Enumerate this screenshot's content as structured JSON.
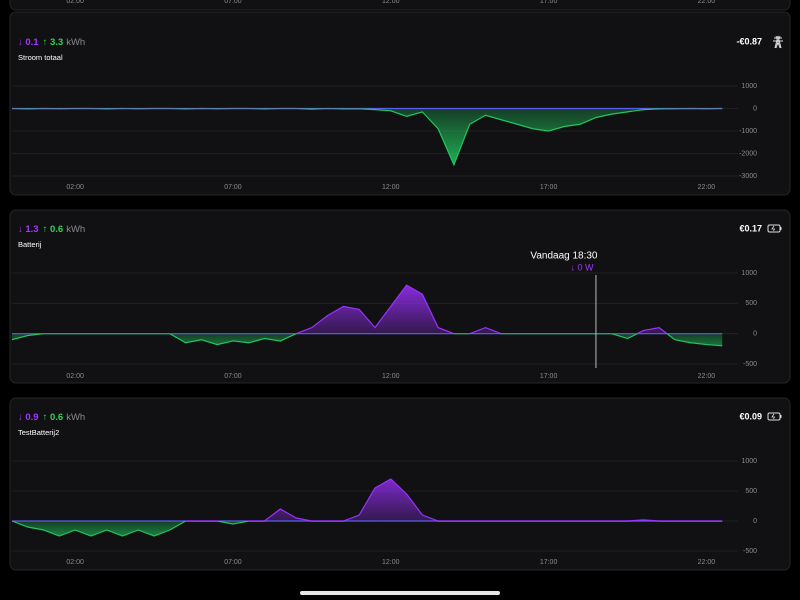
{
  "top_card": {
    "xticks": [
      {
        "value": 2,
        "label": "02:00"
      },
      {
        "value": 7,
        "label": "07:00"
      },
      {
        "value": 12,
        "label": "12:00"
      },
      {
        "value": 17,
        "label": "17:00"
      },
      {
        "value": 22,
        "label": "22:00"
      }
    ]
  },
  "cards": [
    {
      "down": "↓ 0.1",
      "up": "↑ 3.3",
      "unit": "kWh",
      "name": "Stroom totaal",
      "cost": "-€0.87",
      "chart_data": {
        "type": "area",
        "xlim": [
          0,
          23
        ],
        "ylim": [
          -3000,
          1000
        ],
        "yticks": [
          1000,
          0,
          -1000,
          -2000,
          -3000
        ],
        "xticks": [
          {
            "value": 2,
            "label": "02:00"
          },
          {
            "value": 7,
            "label": "07:00"
          },
          {
            "value": 12,
            "label": "12:00"
          },
          {
            "value": 17,
            "label": "17:00"
          },
          {
            "value": 22,
            "label": "22:00"
          }
        ],
        "positive_color": "#9b30ff",
        "negative_color": "#22c55e",
        "x": [
          0,
          0.5,
          1,
          1.5,
          2,
          2.5,
          3,
          3.5,
          4,
          4.5,
          5,
          5.5,
          6,
          6.5,
          7,
          7.5,
          8,
          8.5,
          9,
          9.5,
          10,
          10.5,
          11,
          11.5,
          12,
          12.5,
          13,
          13.5,
          14,
          14.5,
          15,
          15.5,
          16,
          16.5,
          17,
          17.5,
          18,
          18.5,
          19,
          19.5,
          20,
          20.5,
          21,
          21.5,
          22,
          22.5
        ],
        "values": [
          0,
          -20,
          0,
          -10,
          0,
          0,
          -20,
          0,
          -10,
          0,
          0,
          -20,
          0,
          -10,
          0,
          0,
          -20,
          0,
          0,
          -30,
          0,
          -20,
          -10,
          -50,
          -100,
          -350,
          -150,
          -900,
          -2500,
          -700,
          -300,
          -500,
          -700,
          -900,
          -1000,
          -800,
          -700,
          -400,
          -250,
          -150,
          -50,
          -20,
          -10,
          0,
          -10,
          0
        ]
      }
    },
    {
      "down": "↓ 1.3",
      "up": "↑ 0.6",
      "unit": "kWh",
      "name": "Batterij",
      "cost": "€0.17",
      "tooltip": {
        "x": 18.5,
        "title": "Vandaag 18:30",
        "value": "↓ 0 W"
      },
      "chart_data": {
        "type": "area",
        "xlim": [
          0,
          23
        ],
        "ylim": [
          -500,
          1000
        ],
        "yticks": [
          1000,
          500,
          0,
          -500
        ],
        "xticks": [
          {
            "value": 2,
            "label": "02:00"
          },
          {
            "value": 7,
            "label": "07:00"
          },
          {
            "value": 12,
            "label": "12:00"
          },
          {
            "value": 17,
            "label": "17:00"
          },
          {
            "value": 22,
            "label": "22:00"
          }
        ],
        "positive_color": "#9b30ff",
        "negative_color": "#22c55e",
        "x": [
          0,
          0.5,
          1,
          1.5,
          2,
          2.5,
          3,
          3.5,
          4,
          4.5,
          5,
          5.5,
          6,
          6.5,
          7,
          7.5,
          8,
          8.5,
          9,
          9.5,
          10,
          10.5,
          11,
          11.5,
          12,
          12.5,
          13,
          13.5,
          14,
          14.5,
          15,
          15.5,
          16,
          16.5,
          17,
          17.5,
          18,
          18.5,
          19,
          19.5,
          20,
          20.5,
          21,
          21.5,
          22,
          22.5
        ],
        "values": [
          -100,
          -30,
          0,
          0,
          0,
          0,
          0,
          0,
          0,
          0,
          0,
          -150,
          -100,
          -180,
          -120,
          -150,
          -80,
          -120,
          0,
          100,
          300,
          450,
          400,
          100,
          450,
          800,
          650,
          100,
          0,
          0,
          100,
          0,
          0,
          0,
          0,
          0,
          0,
          0,
          0,
          -80,
          50,
          100,
          -100,
          -150,
          -180,
          -200
        ]
      }
    },
    {
      "down": "↓ 0.9",
      "up": "↑ 0.6",
      "unit": "kWh",
      "name": "TestBatterij2",
      "cost": "€0.09",
      "chart_data": {
        "type": "area",
        "xlim": [
          0,
          23
        ],
        "ylim": [
          -500,
          1000
        ],
        "yticks": [
          1000,
          500,
          0,
          -500
        ],
        "xticks": [
          {
            "value": 2,
            "label": "02:00"
          },
          {
            "value": 7,
            "label": "07:00"
          },
          {
            "value": 12,
            "label": "12:00"
          },
          {
            "value": 17,
            "label": "17:00"
          },
          {
            "value": 22,
            "label": "22:00"
          }
        ],
        "positive_color": "#9b30ff",
        "negative_color": "#22c55e",
        "x": [
          0,
          0.5,
          1,
          1.5,
          2,
          2.5,
          3,
          3.5,
          4,
          4.5,
          5,
          5.5,
          6,
          6.5,
          7,
          7.5,
          8,
          8.5,
          9,
          9.5,
          10,
          10.5,
          11,
          11.5,
          12,
          12.5,
          13,
          13.5,
          14,
          14.5,
          15,
          15.5,
          16,
          16.5,
          17,
          17.5,
          18,
          18.5,
          19,
          19.5,
          20,
          20.5,
          21,
          21.5,
          22,
          22.5
        ],
        "values": [
          0,
          -100,
          -150,
          -250,
          -150,
          -250,
          -150,
          -250,
          -150,
          -250,
          -150,
          0,
          0,
          0,
          -50,
          0,
          0,
          200,
          50,
          0,
          0,
          0,
          100,
          550,
          700,
          450,
          100,
          0,
          0,
          0,
          0,
          0,
          0,
          0,
          0,
          0,
          0,
          0,
          0,
          0,
          20,
          0,
          0,
          0,
          0,
          0
        ]
      }
    }
  ]
}
